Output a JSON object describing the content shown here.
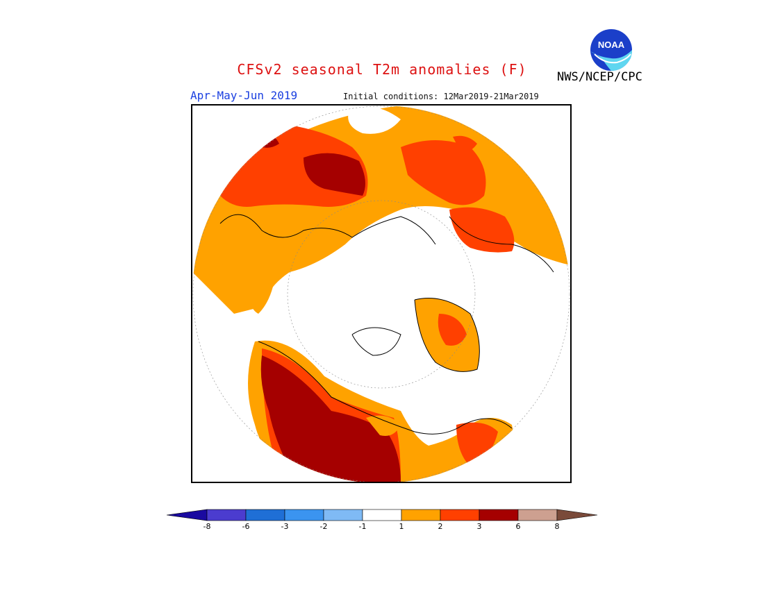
{
  "header": {
    "title": "CFSv2 seasonal T2m anomalies (F)",
    "season": "Apr-May-Jun 2019",
    "initial_conditions": "Initial conditions: 12Mar2019-21Mar2019",
    "agency": "NWS/NCEP/CPC",
    "logo_text": "NOAA"
  },
  "map": {
    "projection": "north polar stereographic",
    "colors": {
      "ocean_neutral": "#ffffff",
      "orange": "#ffa200",
      "red_orange": "#ff4000",
      "dark_red": "#a50000",
      "coast": "#000000"
    }
  },
  "colorbar": {
    "ticks": [
      "-8",
      "-6",
      "-3",
      "-2",
      "-1",
      "1",
      "2",
      "3",
      "6",
      "8"
    ],
    "colors": [
      "#1a0aa0",
      "#4b3ccf",
      "#1f6fd6",
      "#3b94f0",
      "#7fbaf5",
      "#ffffff",
      "#ffa200",
      "#ff4000",
      "#a50000",
      "#cda090",
      "#7a4a3a"
    ]
  }
}
